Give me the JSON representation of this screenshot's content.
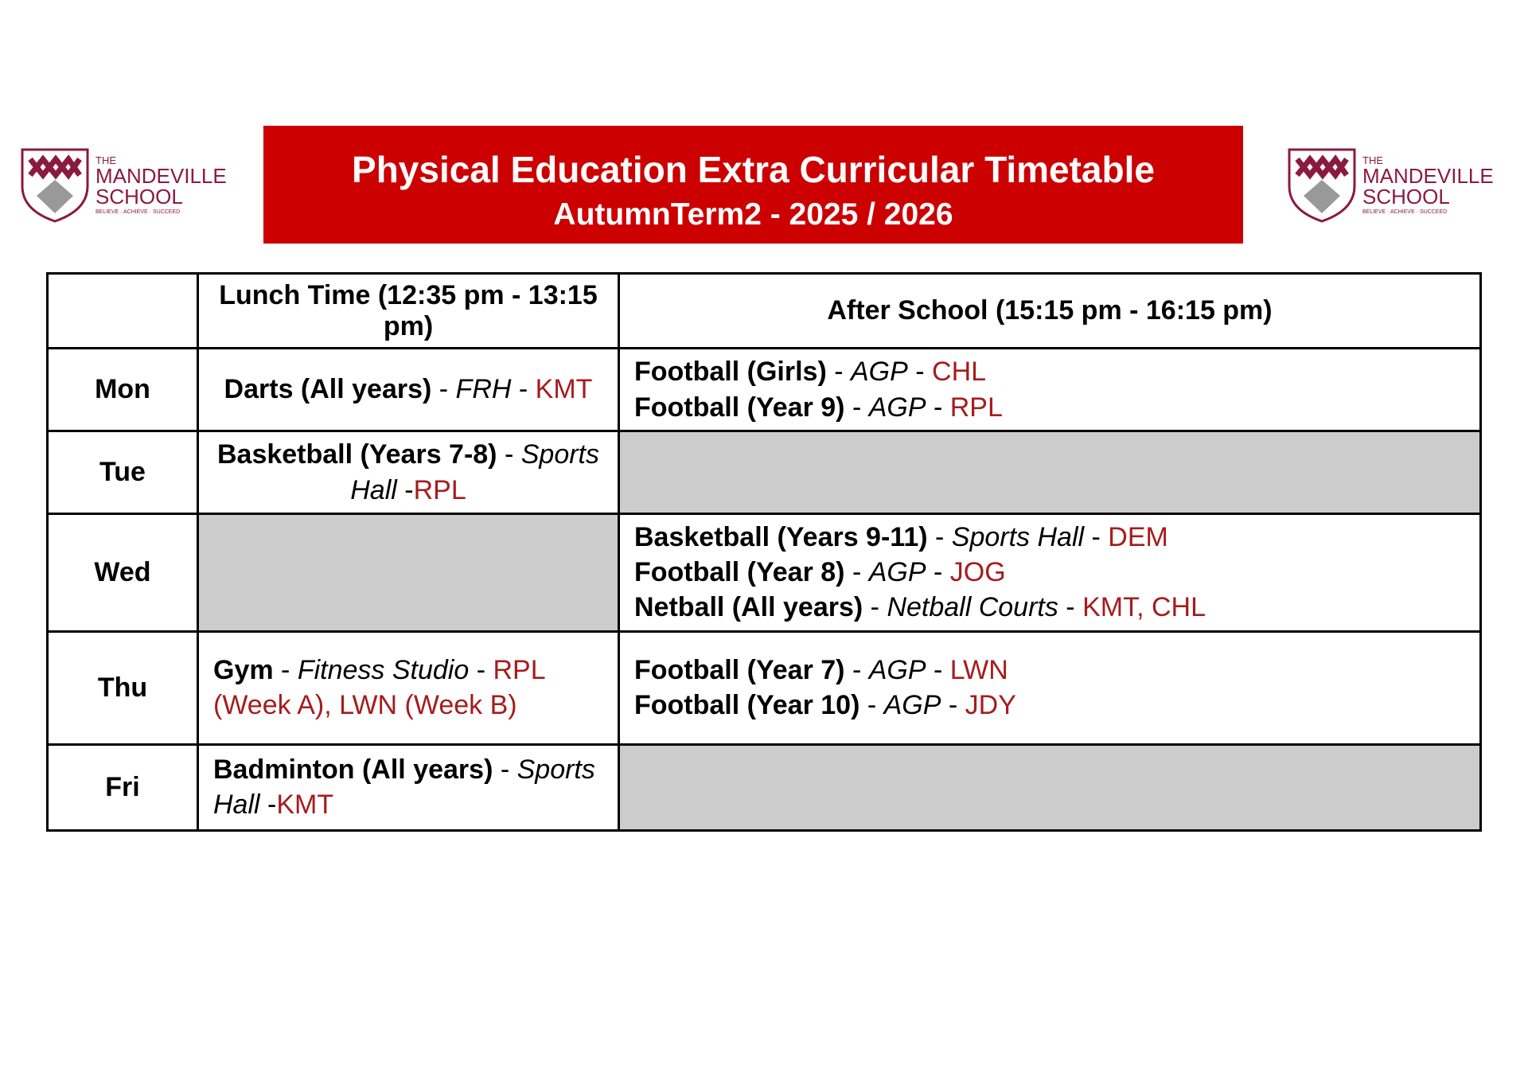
{
  "header": {
    "title": "Physical Education Extra Curricular Timetable",
    "subtitle": "AutumnTerm2 - 2025 / 2026"
  },
  "logo": {
    "the": "THE",
    "name1": "MANDEVILLE",
    "name2": "SCHOOL",
    "motto": "BELIEVE · ACHIEVE · SUCCEED"
  },
  "table": {
    "columns": [
      "Lunch Time (12:35 pm - 13:15 pm)",
      "After School (15:15 pm - 16:15 pm)"
    ],
    "rows": [
      {
        "day": "Mon",
        "lunch": {
          "align": "center",
          "lines": [
            [
              {
                "text": "Darts (All years)",
                "style": "bold"
              },
              {
                "text": " - ",
                "style": "plain"
              },
              {
                "text": "FRH",
                "style": "italic"
              },
              {
                "text": " - ",
                "style": "plain"
              },
              {
                "text": "KMT",
                "style": "staff"
              }
            ]
          ]
        },
        "after": {
          "align": "left",
          "lines": [
            [
              {
                "text": "Football (Girls)",
                "style": "bold"
              },
              {
                "text": " - ",
                "style": "plain"
              },
              {
                "text": "AGP",
                "style": "italic"
              },
              {
                "text": " - ",
                "style": "plain"
              },
              {
                "text": "CHL",
                "style": "staff"
              }
            ],
            [
              {
                "text": "Football (Year 9)",
                "style": "bold"
              },
              {
                "text": " - ",
                "style": "plain"
              },
              {
                "text": "AGP",
                "style": "italic"
              },
              {
                "text": " - ",
                "style": "plain"
              },
              {
                "text": "RPL",
                "style": "staff"
              }
            ]
          ]
        }
      },
      {
        "day": "Tue",
        "lunch": {
          "align": "center",
          "lines": [
            [
              {
                "text": "Basketball (Years 7-8)",
                "style": "bold"
              },
              {
                "text": " - ",
                "style": "plain"
              },
              {
                "text": "Sports Hall",
                "style": "italic"
              },
              {
                "text": " -",
                "style": "plain"
              },
              {
                "text": "RPL",
                "style": "staff"
              }
            ]
          ]
        },
        "after": null
      },
      {
        "day": "Wed",
        "lunch": null,
        "after": {
          "align": "left",
          "lines": [
            [
              {
                "text": "Basketball (Years 9-11)",
                "style": "bold"
              },
              {
                "text": " - ",
                "style": "plain"
              },
              {
                "text": "Sports Hall",
                "style": "italic"
              },
              {
                "text": " - ",
                "style": "plain"
              },
              {
                "text": "DEM",
                "style": "staff"
              }
            ],
            [
              {
                "text": "Football (Year 8)",
                "style": "bold"
              },
              {
                "text": " - ",
                "style": "plain"
              },
              {
                "text": "AGP",
                "style": "italic"
              },
              {
                "text": " - ",
                "style": "plain"
              },
              {
                "text": "JOG",
                "style": "staff"
              }
            ],
            [
              {
                "text": "Netball (All years)",
                "style": "bold"
              },
              {
                "text": " - ",
                "style": "plain"
              },
              {
                "text": "Netball Courts",
                "style": "italic"
              },
              {
                "text": " - ",
                "style": "plain"
              },
              {
                "text": "KMT, CHL",
                "style": "staff"
              }
            ]
          ]
        }
      },
      {
        "day": "Thu",
        "lunch": {
          "align": "left",
          "lines": [
            [
              {
                "text": "Gym",
                "style": "bold"
              },
              {
                "text": " - ",
                "style": "plain"
              },
              {
                "text": "Fitness Studio",
                "style": "italic"
              },
              {
                "text": " - ",
                "style": "plain"
              },
              {
                "text": "RPL (Week A), LWN (Week B)",
                "style": "staff"
              }
            ]
          ]
        },
        "after": {
          "align": "left",
          "lines": [
            [
              {
                "text": "Football (Year 7)",
                "style": "bold"
              },
              {
                "text": " - ",
                "style": "plain"
              },
              {
                "text": "AGP",
                "style": "italic"
              },
              {
                "text": " - ",
                "style": "plain"
              },
              {
                "text": "LWN",
                "style": "staff"
              }
            ],
            [
              {
                "text": "Football (Year 10)",
                "style": "bold"
              },
              {
                "text": " - ",
                "style": "plain"
              },
              {
                "text": "AGP",
                "style": "italic"
              },
              {
                "text": " - ",
                "style": "plain"
              },
              {
                "text": "JDY",
                "style": "staff"
              }
            ]
          ]
        }
      },
      {
        "day": "Fri",
        "lunch": {
          "align": "left",
          "lines": [
            [
              {
                "text": "Badminton (All years)",
                "style": "bold"
              },
              {
                "text": " - ",
                "style": "plain"
              },
              {
                "text": "Sports Hall",
                "style": "italic"
              },
              {
                "text": " -",
                "style": "plain"
              },
              {
                "text": "KMT",
                "style": "staff"
              }
            ]
          ]
        },
        "after": null
      }
    ]
  }
}
